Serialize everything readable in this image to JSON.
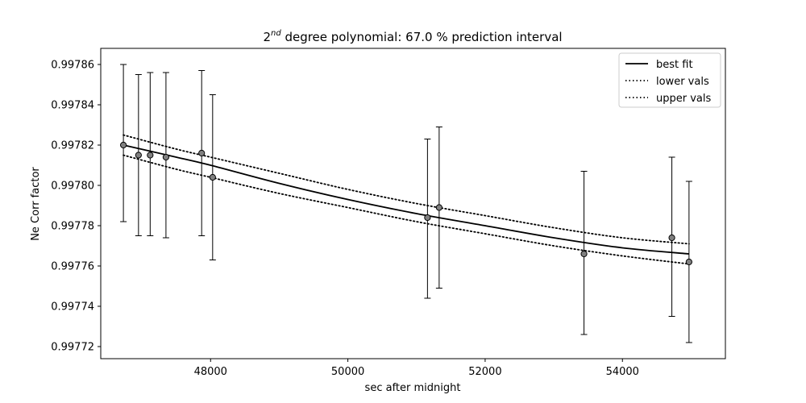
{
  "chart_data": {
    "type": "scatter",
    "title": {
      "prefix": "2",
      "superscript": "nd",
      "suffix": " degree polynomial: 67.0 % prediction interval"
    },
    "xlabel": "sec after midnight",
    "ylabel": "Ne Corr factor",
    "xlim": [
      46400,
      55500
    ],
    "ylim": [
      0.997714,
      0.997868
    ],
    "xticks": [
      48000,
      50000,
      52000,
      54000
    ],
    "xtick_labels": [
      "48000",
      "50000",
      "52000",
      "54000"
    ],
    "yticks": [
      0.99772,
      0.99774,
      0.99776,
      0.99778,
      0.9978,
      0.99782,
      0.99784,
      0.99786
    ],
    "ytick_labels": [
      "0.99772",
      "0.99774",
      "0.99776",
      "0.99778",
      "0.99780",
      "0.99782",
      "0.99784",
      "0.99786"
    ],
    "grid": false,
    "legend_position": "top-right",
    "points": {
      "x": [
        46730,
        46950,
        47120,
        47350,
        47870,
        48030,
        51160,
        51330,
        53440,
        54720,
        54970
      ],
      "y": [
        0.99782,
        0.997815,
        0.997815,
        0.997814,
        0.997816,
        0.997804,
        0.997784,
        0.997789,
        0.997766,
        0.997774,
        0.997762
      ],
      "yerr_low": [
        0.997782,
        0.997775,
        0.997775,
        0.997774,
        0.997775,
        0.997763,
        0.997744,
        0.997749,
        0.997726,
        0.997735,
        0.997722
      ],
      "yerr_high": [
        0.99786,
        0.997855,
        0.997856,
        0.997856,
        0.997857,
        0.997845,
        0.997823,
        0.997829,
        0.997807,
        0.997814,
        0.997802
      ],
      "marker_fill": "#808080",
      "marker_edge": "#000000"
    },
    "series": [
      {
        "name": "best fit",
        "style": "solid",
        "x": [
          46730,
          47500,
          48000,
          49000,
          50000,
          51000,
          52000,
          53000,
          54000,
          54970
        ],
        "y": [
          0.99782,
          0.997814,
          0.99781,
          0.997801,
          0.997793,
          0.997786,
          0.99778,
          0.997774,
          0.997769,
          0.997766
        ]
      },
      {
        "name": "lower vals",
        "style": "dotted",
        "x": [
          46730,
          47500,
          48000,
          49000,
          50000,
          51000,
          52000,
          53000,
          54000,
          54970
        ],
        "y": [
          0.997815,
          0.997808,
          0.997804,
          0.997796,
          0.997789,
          0.997782,
          0.997776,
          0.99777,
          0.997765,
          0.997761
        ]
      },
      {
        "name": "upper vals",
        "style": "dotted",
        "x": [
          46730,
          47500,
          48000,
          49000,
          50000,
          51000,
          52000,
          53000,
          54000,
          54970
        ],
        "y": [
          0.997825,
          0.997818,
          0.997814,
          0.997806,
          0.997798,
          0.997791,
          0.997785,
          0.997779,
          0.997774,
          0.997771
        ]
      }
    ]
  }
}
